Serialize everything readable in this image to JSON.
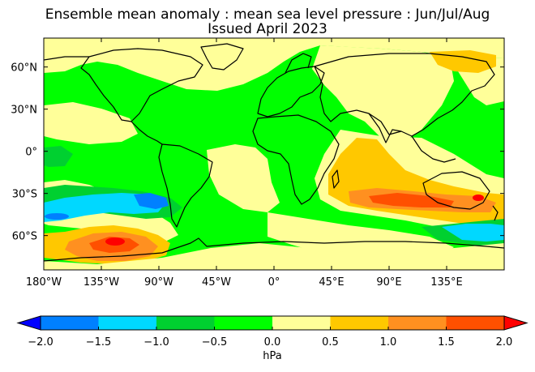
{
  "title_line1": "Ensemble mean anomaly : mean sea level pressure : Jun/Jul/Aug",
  "title_line2": "Issued April 2023",
  "lon_labels": [
    "180°W",
    "135°W",
    "90°W",
    "45°W",
    "0°",
    "45°E",
    "90°E",
    "135°E"
  ],
  "lat_labels": [
    "60°N",
    "30°N",
    "0°",
    "30°S",
    "60°S"
  ],
  "colorbar": {
    "ticks": [
      "-2.0",
      "-1.5",
      "-1.0",
      "-0.5",
      "0.0",
      "0.5",
      "1.0",
      "1.5",
      "2.0"
    ],
    "unit": "hPa",
    "colors": [
      "#0000ff",
      "#0080ff",
      "#00d8ff",
      "#00d030",
      "#00ff00",
      "#ffff99",
      "#ffc800",
      "#ff9020",
      "#ff5000",
      "#ff0000"
    ]
  },
  "colors": {
    "ocean_base": "#00ff00",
    "land_line": "#000000"
  }
}
